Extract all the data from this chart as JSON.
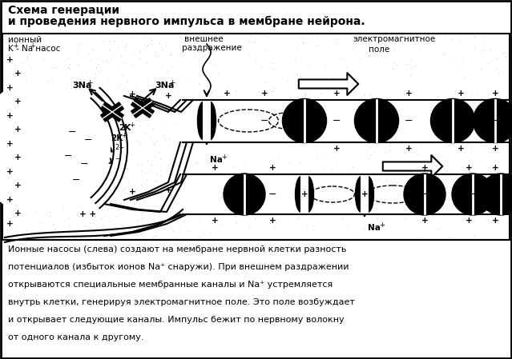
{
  "title_line1": "Схема генерации",
  "title_line2": "и проведения нервного импульса в мембране нейрона.",
  "text_body_line1": "Ионные насосы (слева) создают на мембране нервной клетки разность",
  "text_body_line2": "потенциалов (избыток ионов Na⁺ снаружи). При внешнем раздражении",
  "text_body_line3": "открываются специальные мембранные каналы и Na⁺ устремляется",
  "text_body_line4": "внутрь клетки, генерируя электромагнитное поле. Это поле возбуждает",
  "text_body_line5": "и открывает следующие каналы. Импульс бежит по нервному волокну",
  "text_body_line6": "от одного канала к другому.",
  "bg_color": "#ffffff",
  "fig_width": 6.39,
  "fig_height": 4.49,
  "dpi": 100
}
